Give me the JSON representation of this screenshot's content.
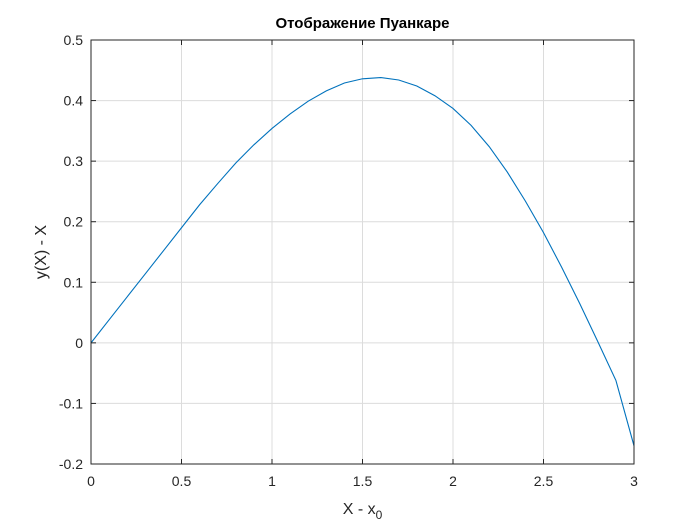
{
  "chart_data": {
    "type": "line",
    "title": "Отображение Пуанкаре",
    "xlabel": "X - x",
    "xlabel_subscript": "0",
    "ylabel": "y(X) - X",
    "xlim": [
      0,
      3
    ],
    "ylim": [
      -0.2,
      0.5
    ],
    "xticks": [
      0,
      0.5,
      1,
      1.5,
      2,
      2.5,
      3
    ],
    "xtick_labels": [
      "0",
      "0.5",
      "1",
      "1.5",
      "2",
      "2.5",
      "3"
    ],
    "yticks": [
      -0.2,
      -0.1,
      0,
      0.1,
      0.2,
      0.3,
      0.4,
      0.5
    ],
    "ytick_labels": [
      "-0.2",
      "-0.1",
      "0",
      "0.1",
      "0.2",
      "0.3",
      "0.4",
      "0.5"
    ],
    "grid": true,
    "series": [
      {
        "color": "#0072bd",
        "x": [
          0,
          0.1,
          0.2,
          0.3,
          0.4,
          0.5,
          0.6,
          0.7,
          0.8,
          0.9,
          1.0,
          1.1,
          1.2,
          1.3,
          1.4,
          1.5,
          1.6,
          1.7,
          1.8,
          1.9,
          2.0,
          2.1,
          2.2,
          2.3,
          2.4,
          2.5,
          2.6,
          2.7,
          2.8,
          2.9,
          3.0
        ],
        "y": [
          0,
          0.038,
          0.076,
          0.114,
          0.152,
          0.19,
          0.228,
          0.263,
          0.297,
          0.327,
          0.354,
          0.378,
          0.399,
          0.416,
          0.429,
          0.436,
          0.438,
          0.434,
          0.424,
          0.408,
          0.387,
          0.359,
          0.324,
          0.282,
          0.234,
          0.182,
          0.125,
          0.065,
          0.002,
          -0.062,
          -0.17
        ]
      }
    ]
  }
}
